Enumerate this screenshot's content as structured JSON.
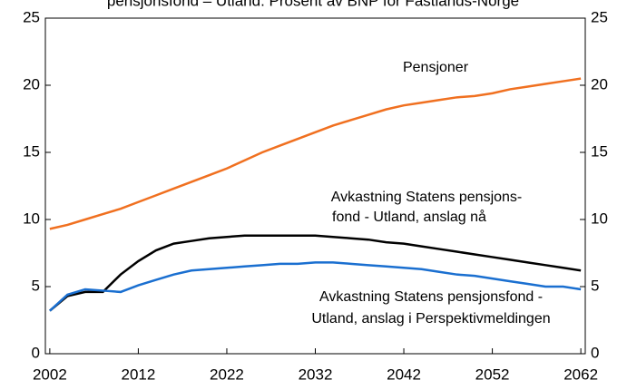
{
  "chart_data": {
    "type": "line",
    "title": "pensjonsfond – Utland. Prosent av BNP for Fastlands-Norge",
    "x": [
      2002,
      2004,
      2006,
      2008,
      2010,
      2012,
      2014,
      2016,
      2018,
      2020,
      2022,
      2024,
      2026,
      2028,
      2030,
      2032,
      2034,
      2036,
      2038,
      2040,
      2042,
      2044,
      2046,
      2048,
      2050,
      2052,
      2054,
      2056,
      2058,
      2060,
      2062
    ],
    "series": [
      {
        "name": "Pensjoner",
        "color": "#f07020",
        "values": [
          9.3,
          9.6,
          10.0,
          10.4,
          10.8,
          11.3,
          11.8,
          12.3,
          12.8,
          13.3,
          13.8,
          14.4,
          15.0,
          15.5,
          16.0,
          16.5,
          17.0,
          17.4,
          17.8,
          18.2,
          18.5,
          18.7,
          18.9,
          19.1,
          19.2,
          19.4,
          19.7,
          19.9,
          20.1,
          20.3,
          20.5
        ]
      },
      {
        "name": [
          "Avkastning Statens pensjons-",
          "fond - Utland, anslag nå"
        ],
        "color": "#000000",
        "values": [
          3.2,
          4.3,
          4.6,
          4.6,
          5.9,
          6.9,
          7.7,
          8.2,
          8.4,
          8.6,
          8.7,
          8.8,
          8.8,
          8.8,
          8.8,
          8.8,
          8.7,
          8.6,
          8.5,
          8.3,
          8.2,
          8.0,
          7.8,
          7.6,
          7.4,
          7.2,
          7.0,
          6.8,
          6.6,
          6.4,
          6.2
        ]
      },
      {
        "name": [
          "Avkastning Statens pensjonsfond -",
          "Utland, anslag i Perspektivmeldingen"
        ],
        "color": "#1a6fd0",
        "values": [
          3.2,
          4.4,
          4.8,
          4.7,
          4.6,
          5.1,
          5.5,
          5.9,
          6.2,
          6.3,
          6.4,
          6.5,
          6.6,
          6.7,
          6.7,
          6.8,
          6.8,
          6.7,
          6.6,
          6.5,
          6.4,
          6.3,
          6.1,
          5.9,
          5.8,
          5.6,
          5.4,
          5.2,
          5.0,
          5.0,
          4.8
        ]
      }
    ],
    "xlim": [
      2001.5,
      2062.5
    ],
    "xticks": [
      2002,
      2012,
      2022,
      2032,
      2042,
      2052,
      2062
    ],
    "ylim": [
      0,
      25
    ],
    "yticks": [
      0,
      5,
      10,
      15,
      20,
      25
    ],
    "y2lim": [
      0,
      25
    ],
    "y2ticks": [
      0,
      5,
      10,
      15,
      20,
      25
    ],
    "grid": false
  }
}
